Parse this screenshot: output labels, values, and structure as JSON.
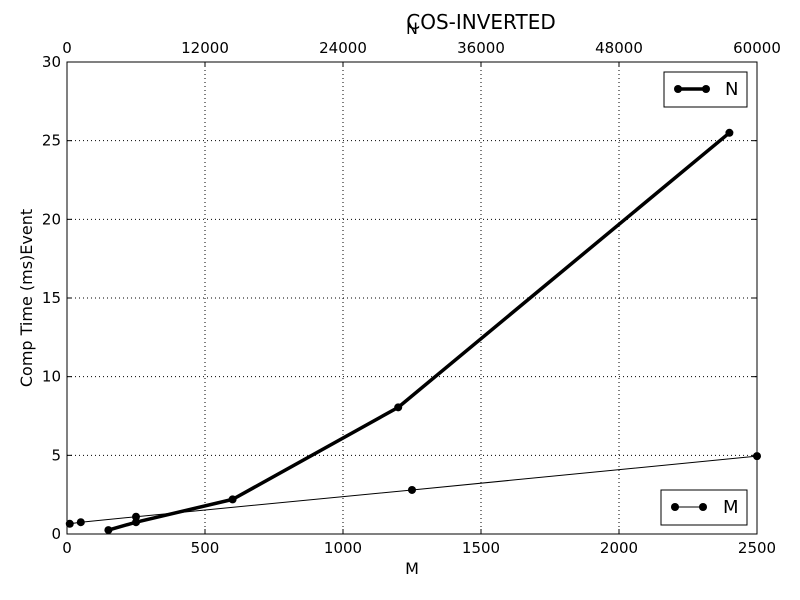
{
  "chart_data": {
    "type": "line",
    "title": "COS-INVERTED",
    "xlabel": "M",
    "x2label": "N",
    "ylabel": "Comp Time (ms)Event",
    "xlim": [
      0,
      2500
    ],
    "x2lim": [
      0,
      60000
    ],
    "ylim": [
      0,
      30
    ],
    "xticks": [
      0,
      500,
      1000,
      1500,
      2000,
      2500
    ],
    "x2ticks": [
      0,
      12000,
      24000,
      36000,
      48000,
      60000
    ],
    "yticks": [
      0,
      5,
      10,
      15,
      20,
      25,
      30
    ],
    "grid": true,
    "series": [
      {
        "name": "N",
        "axis": "top",
        "color": "#000000",
        "line_style": "thick",
        "legend": "top-right",
        "x": [
          3600,
          6000,
          14400,
          28800,
          57600
        ],
        "y": [
          0.25,
          0.75,
          2.2,
          8.05,
          25.5
        ]
      },
      {
        "name": "M",
        "axis": "bottom",
        "color": "#000000",
        "line_style": "thin",
        "legend": "bottom-right",
        "x": [
          10,
          50,
          250,
          1250,
          2500
        ],
        "y": [
          0.65,
          0.75,
          1.1,
          2.8,
          4.95
        ]
      }
    ]
  }
}
